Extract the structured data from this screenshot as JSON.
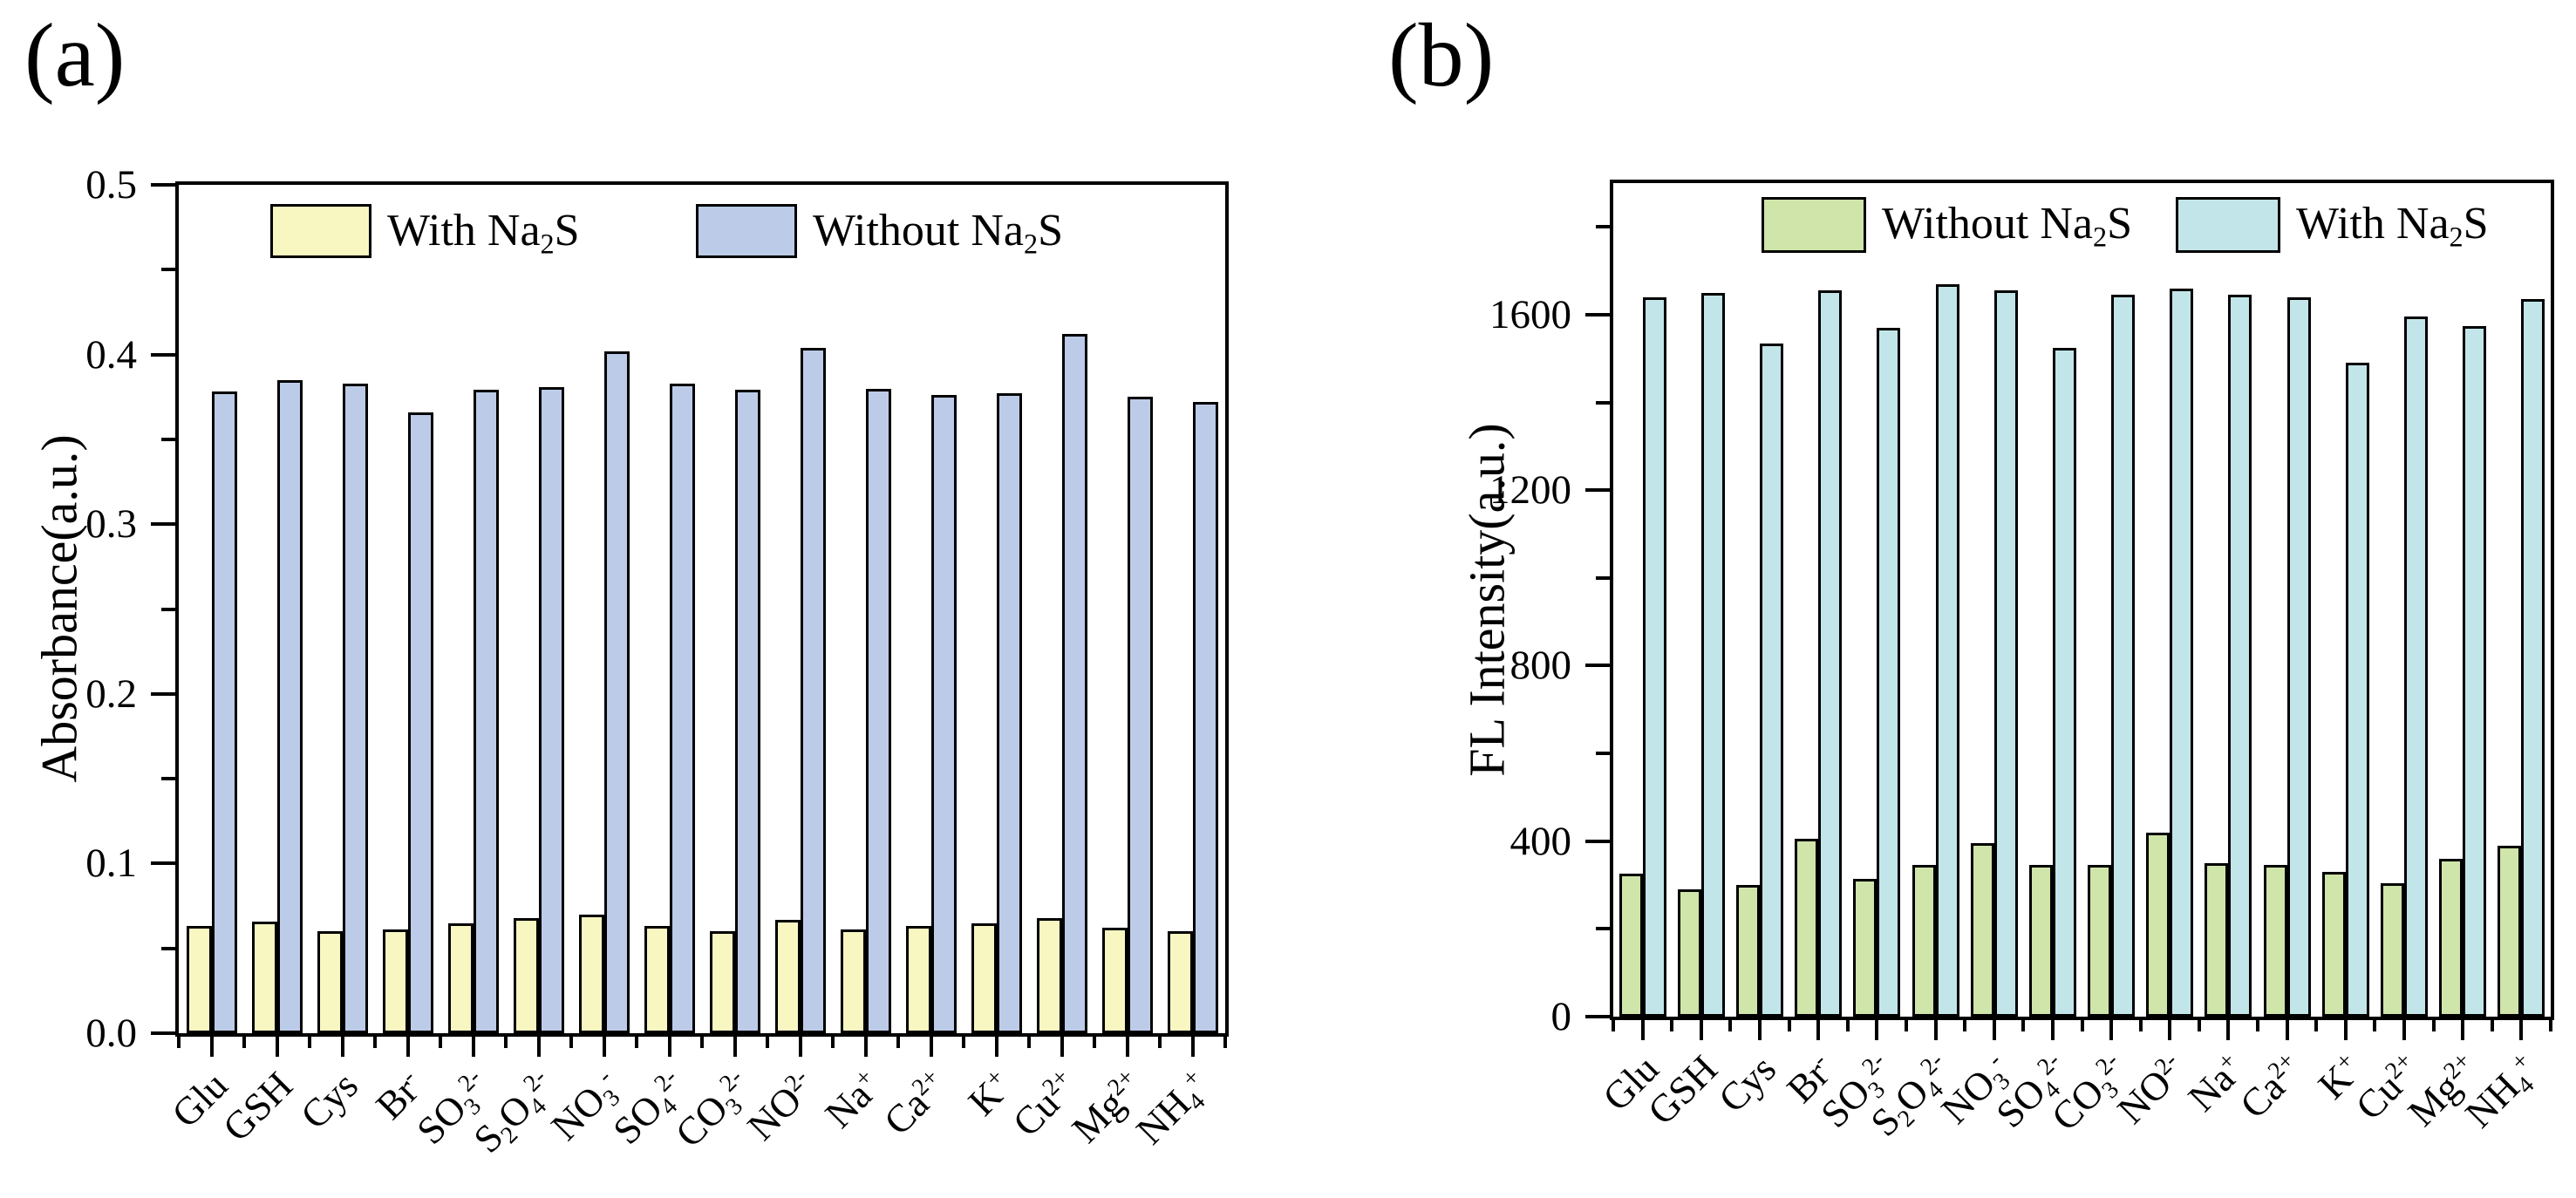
{
  "page": {
    "background": "#ffffff",
    "axis_color": "#000000"
  },
  "chart_data": [
    {
      "type": "bar",
      "panel_label": "(a)",
      "title": "",
      "xlabel": "",
      "ylabel": "Absorbance(a.u.)",
      "ylim": [
        0,
        0.5
      ],
      "yticks": [
        0,
        0.1,
        0.2,
        0.3,
        0.4,
        0.5
      ],
      "ytick_labels": [
        "0.0",
        "0.1",
        "0.2",
        "0.3",
        "0.4",
        "0.5"
      ],
      "minor_tick_step": 0.05,
      "grid": false,
      "legend_position": "top-inside",
      "categories": [
        "Glu",
        "GSH",
        "Cys",
        "Br^{-}",
        "SO_{3}^{2-}",
        "S_{2}O_{4}^{2-}",
        "NO_{3}^{-}",
        "SO_{4}^{2-}",
        "CO_{3}^{2-}",
        "NO^{2-}",
        "Na^{+}",
        "Ca^{2+}",
        "K^{+}",
        "Cu^{2+}",
        "Mg^{2+}",
        "NH_{4}^{+}"
      ],
      "series": [
        {
          "name": "With Na_{2}S",
          "color": "#f8f6c1",
          "values": [
            0.063,
            0.066,
            0.06,
            0.061,
            0.065,
            0.068,
            0.07,
            0.063,
            0.06,
            0.067,
            0.061,
            0.063,
            0.065,
            0.068,
            0.062,
            0.06
          ]
        },
        {
          "name": "Without Na_{2}S",
          "color": "#bccce8",
          "values": [
            0.378,
            0.385,
            0.383,
            0.366,
            0.379,
            0.381,
            0.402,
            0.383,
            0.379,
            0.404,
            0.38,
            0.376,
            0.377,
            0.412,
            0.375,
            0.372
          ]
        }
      ]
    },
    {
      "type": "bar",
      "panel_label": "(b)",
      "title": "",
      "xlabel": "",
      "ylabel": "FL Intensity(a.u.)",
      "ylim": [
        0,
        1900
      ],
      "yticks": [
        0,
        400,
        800,
        1200,
        1600
      ],
      "ytick_labels": [
        "0",
        "400",
        "800",
        "1200",
        "1600"
      ],
      "minor_tick_step": 200,
      "grid": false,
      "legend_position": "top-inside",
      "categories": [
        "Glu",
        "GSH",
        "Cys",
        "Br^{-}",
        "SO_{3}^{2-}",
        "S_{2}O_{4}^{2-}",
        "NO_{3}^{-}",
        "SO_{4}^{2-}",
        "CO_{3}^{2-}",
        "NO^{2-}",
        "Na^{+}",
        "Ca^{2+}",
        "K^{+}",
        "Cu^{2+}",
        "Mg^{2+}",
        "NH_{4}^{+}"
      ],
      "series": [
        {
          "name": "Without Na_{2}S",
          "color": "#cfe5a9",
          "values": [
            325,
            290,
            300,
            405,
            315,
            345,
            395,
            345,
            345,
            420,
            350,
            345,
            330,
            305,
            360,
            390
          ]
        },
        {
          "name": "With Na_{2}S",
          "color": "#c2e5e9",
          "values": [
            1640,
            1650,
            1535,
            1655,
            1570,
            1670,
            1655,
            1525,
            1645,
            1660,
            1645,
            1640,
            1490,
            1595,
            1575,
            1635
          ]
        }
      ]
    }
  ]
}
